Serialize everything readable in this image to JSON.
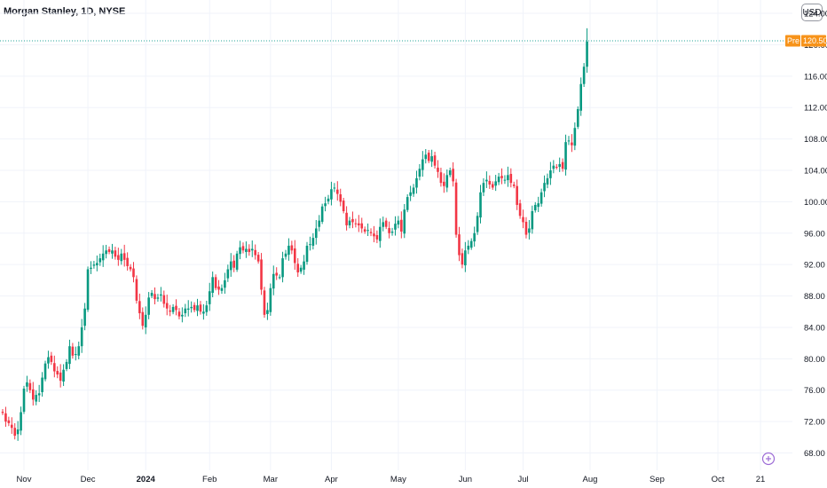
{
  "header": {
    "title": "Morgan Stanley, 1D, NYSE",
    "currency": "USD"
  },
  "price_badge": {
    "label": "Pre",
    "value": "120.50"
  },
  "colors": {
    "up": "#089981",
    "down": "#f23645",
    "grid": "#f0f3fa",
    "prelabel": "#f7931a",
    "priceline": "#26a69a"
  },
  "event_icon": "clock-plus-icon",
  "chart_data": {
    "type": "candlestick",
    "title": "Morgan Stanley, 1D, NYSE",
    "ylim": [
      65.8,
      125.7
    ],
    "y_ticks": [
      68,
      72,
      76,
      80,
      84,
      88,
      92,
      96,
      100,
      104,
      108,
      112,
      116,
      120,
      124
    ],
    "y_tick_labels": [
      "68.00",
      "72.00",
      "76.00",
      "80.00",
      "84.00",
      "88.00",
      "92.00",
      "96.00",
      "100.00",
      "104.00",
      "108.00",
      "112.00",
      "116.00",
      "120.00",
      "124.00"
    ],
    "x_ticks": [
      {
        "label": "Nov",
        "index": 7,
        "bold": false
      },
      {
        "label": "Dec",
        "index": 28,
        "bold": false
      },
      {
        "label": "2024",
        "index": 47,
        "bold": true
      },
      {
        "label": "Feb",
        "index": 68,
        "bold": false
      },
      {
        "label": "Mar",
        "index": 88,
        "bold": false
      },
      {
        "label": "Apr",
        "index": 108,
        "bold": false
      },
      {
        "label": "May",
        "index": 130,
        "bold": false
      },
      {
        "label": "Jun",
        "index": 152,
        "bold": false
      },
      {
        "label": "Jul",
        "index": 171,
        "bold": false
      },
      {
        "label": "Aug",
        "index": 193,
        "bold": false
      },
      {
        "label": "Sep",
        "index": 215,
        "bold": false
      },
      {
        "label": "Oct",
        "index": 235,
        "bold": false
      },
      {
        "label": "21",
        "index": 249,
        "bold": false
      }
    ],
    "last_price": 120.5,
    "closes": [
      73.1,
      72.0,
      71.8,
      71.2,
      70.2,
      71.0,
      73.2,
      76.2,
      77.0,
      76.0,
      74.8,
      75.4,
      75.6,
      77.6,
      79.4,
      80.2,
      79.6,
      78.4,
      78.0,
      77.2,
      78.6,
      79.6,
      81.6,
      80.4,
      80.6,
      81.6,
      84.0,
      86.4,
      91.4,
      91.6,
      92.0,
      92.2,
      92.8,
      93.4,
      93.8,
      93.6,
      93.8,
      93.0,
      92.6,
      93.4,
      92.6,
      91.8,
      91.4,
      90.4,
      87.4,
      85.8,
      84.2,
      85.6,
      87.8,
      88.4,
      87.6,
      87.8,
      88.2,
      87.0,
      86.4,
      86.0,
      86.6,
      86.2,
      85.4,
      85.6,
      86.4,
      86.4,
      86.6,
      86.2,
      86.8,
      86.0,
      86.0,
      86.8,
      88.6,
      90.4,
      89.0,
      88.8,
      89.0,
      90.0,
      91.4,
      92.4,
      91.6,
      93.4,
      94.2,
      93.8,
      94.0,
      93.6,
      94.0,
      93.2,
      92.4,
      88.8,
      85.6,
      86.2,
      89.0,
      90.8,
      90.6,
      90.4,
      92.8,
      93.4,
      94.4,
      93.8,
      92.2,
      91.0,
      91.6,
      92.4,
      94.4,
      94.6,
      95.4,
      96.6,
      97.6,
      99.4,
      99.8,
      100.4,
      101.6,
      101.8,
      101.0,
      100.0,
      98.8,
      97.0,
      97.6,
      97.4,
      97.2,
      97.0,
      96.6,
      96.2,
      96.4,
      96.0,
      95.6,
      95.2,
      96.8,
      97.4,
      96.8,
      96.0,
      96.2,
      97.2,
      97.6,
      96.2,
      99.0,
      100.6,
      101.2,
      101.8,
      103.0,
      104.2,
      105.4,
      106.0,
      105.2,
      105.8,
      104.6,
      103.8,
      102.4,
      102.0,
      103.4,
      104.0,
      102.6,
      95.8,
      93.2,
      92.0,
      93.8,
      94.4,
      95.0,
      96.0,
      98.2,
      101.2,
      102.4,
      102.8,
      102.2,
      101.8,
      102.6,
      103.2,
      103.0,
      102.8,
      103.4,
      102.4,
      102.0,
      99.6,
      98.2,
      97.4,
      95.8,
      96.6,
      98.8,
      99.6,
      99.8,
      101.2,
      102.4,
      103.0,
      104.0,
      104.6,
      104.4,
      104.8,
      104.2,
      107.6,
      107.8,
      107.2,
      109.4,
      111.8,
      115.0,
      117.2,
      120.4
    ]
  }
}
